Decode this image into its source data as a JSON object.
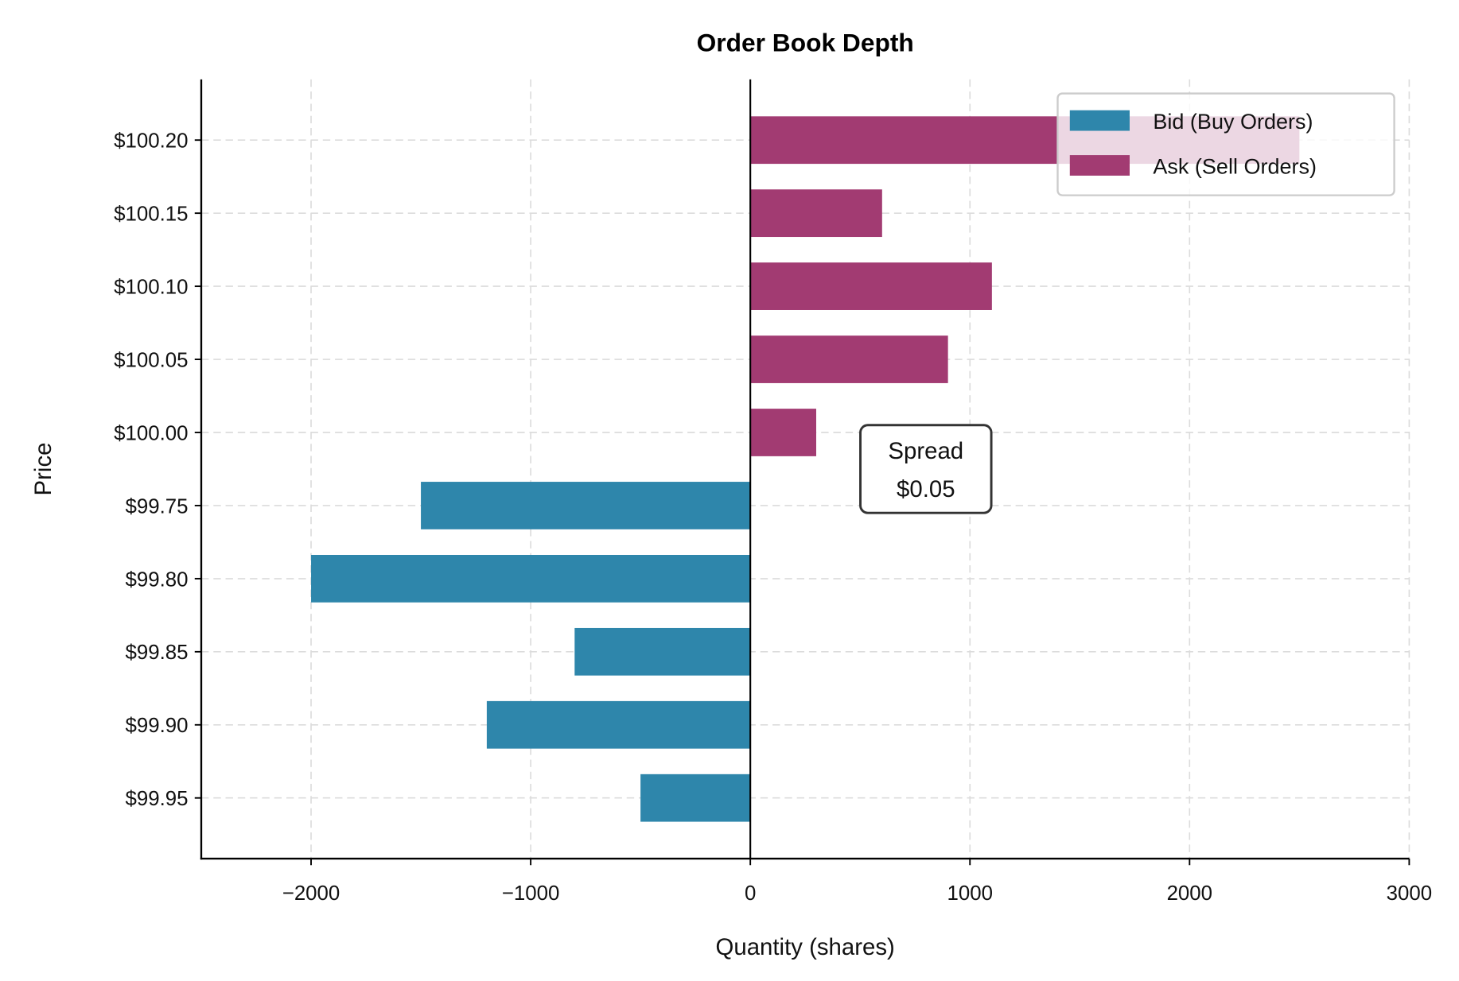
{
  "chart_data": {
    "type": "bar",
    "orientation": "horizontal",
    "title": "Order Book Depth",
    "xlabel": "Quantity (shares)",
    "ylabel": "Price",
    "xlim": [
      -2500,
      3000
    ],
    "xticks": [
      -2000,
      -1000,
      0,
      1000,
      2000,
      3000
    ],
    "xtick_labels": [
      "−2000",
      "−1000",
      "0",
      "1000",
      "2000",
      "3000"
    ],
    "categories": [
      "$100.20",
      "$100.15",
      "$100.10",
      "$100.05",
      "$100.00",
      "$99.75",
      "$99.80",
      "$99.85",
      "$99.90",
      "$99.95"
    ],
    "series": [
      {
        "name": "Bid (Buy Orders)",
        "color": "#2E86AB",
        "values": [
          null,
          null,
          null,
          null,
          null,
          -1500,
          -2000,
          -800,
          -1200,
          -500
        ]
      },
      {
        "name": "Ask (Sell Orders)",
        "color": "#A23B72",
        "values": [
          2500,
          600,
          1100,
          900,
          300,
          null,
          null,
          null,
          null,
          null
        ]
      }
    ],
    "grid": true,
    "legend_position": "top-right",
    "annotation": {
      "lines": [
        "Spread",
        "$0.05"
      ],
      "x": 800,
      "y_between": [
        "$100.00",
        "$99.75"
      ]
    }
  }
}
